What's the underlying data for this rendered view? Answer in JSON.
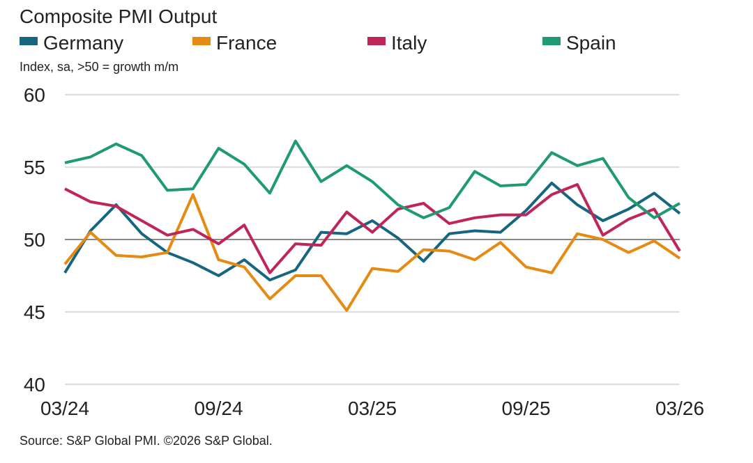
{
  "chart_data": {
    "type": "line",
    "title": "Composite PMI Output",
    "subtitle": "Index, sa, >50 = growth m/m",
    "source": "Source: S&P Global PMI. ©2026 S&P Global.",
    "ylim": [
      40,
      60
    ],
    "yticks": [
      "40",
      "45",
      "50",
      "55",
      "60"
    ],
    "grid": true,
    "legend_position": "top",
    "x": [
      "03/24",
      "04/24",
      "05/24",
      "06/24",
      "07/24",
      "08/24",
      "09/24",
      "10/24",
      "11/24",
      "12/24",
      "01/25",
      "02/25",
      "03/25",
      "04/25",
      "05/25",
      "06/25",
      "07/25",
      "08/25",
      "09/25",
      "10/25",
      "11/25",
      "12/25",
      "01/26",
      "02/26",
      "03/26"
    ],
    "xtick_labels": [
      "03/24",
      "09/24",
      "03/25",
      "09/25",
      "03/26"
    ],
    "series": [
      {
        "name": "Germany",
        "color": "#17667f",
        "values": [
          47.7,
          50.6,
          52.4,
          50.4,
          49.1,
          48.4,
          47.5,
          48.6,
          47.2,
          47.9,
          50.5,
          50.4,
          51.3,
          50.1,
          48.5,
          50.4,
          50.6,
          50.5,
          52.0,
          53.9,
          52.4,
          51.3,
          52.1,
          53.2,
          51.8
        ]
      },
      {
        "name": "France",
        "color": "#e58a12",
        "values": [
          48.3,
          50.5,
          48.9,
          48.8,
          49.1,
          53.1,
          48.6,
          48.1,
          45.9,
          47.5,
          47.5,
          45.1,
          48.0,
          47.8,
          49.3,
          49.2,
          48.6,
          49.8,
          48.1,
          47.7,
          50.4,
          50.0,
          49.1,
          49.9,
          48.7
        ]
      },
      {
        "name": "Italy",
        "color": "#bf2558",
        "values": [
          53.5,
          52.6,
          52.3,
          51.3,
          50.3,
          50.7,
          49.7,
          51.0,
          47.7,
          49.7,
          49.6,
          51.9,
          50.5,
          52.1,
          52.5,
          51.1,
          51.5,
          51.7,
          51.7,
          53.1,
          53.8,
          50.3,
          51.4,
          52.1,
          49.2
        ]
      },
      {
        "name": "Spain",
        "color": "#1f9a74",
        "values": [
          55.3,
          55.7,
          56.6,
          55.8,
          53.4,
          53.5,
          56.3,
          55.2,
          53.2,
          56.8,
          54.0,
          55.1,
          54.0,
          52.4,
          51.5,
          52.2,
          54.7,
          53.7,
          53.8,
          56.0,
          55.1,
          55.6,
          52.9,
          51.5,
          52.5
        ]
      }
    ]
  }
}
